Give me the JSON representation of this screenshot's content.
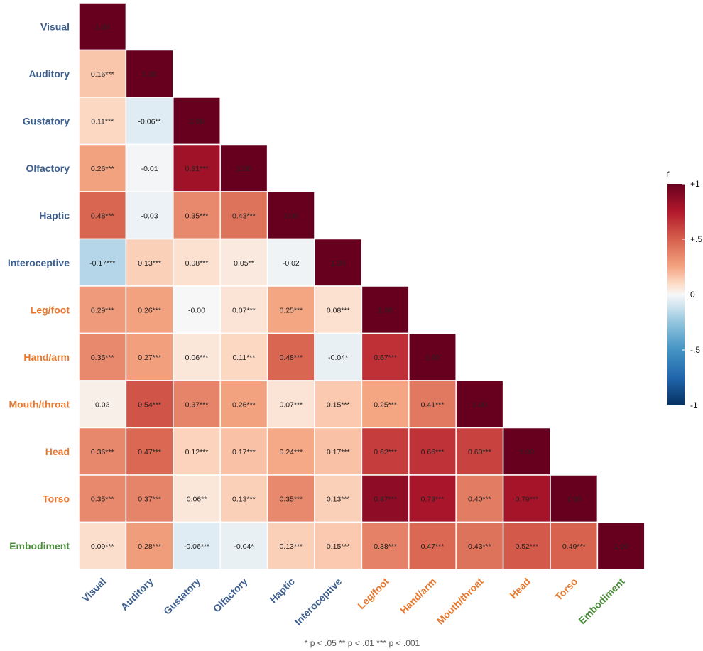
{
  "chart_data": {
    "type": "heatmap",
    "variables": [
      "Visual",
      "Auditory",
      "Gustatory",
      "Olfactory",
      "Haptic",
      "Interoceptive",
      "Leg/foot",
      "Hand/arm",
      "Mouth/throat",
      "Head",
      "Torso",
      "Embodiment"
    ],
    "variable_groups": [
      "perceptual",
      "perceptual",
      "perceptual",
      "perceptual",
      "perceptual",
      "perceptual",
      "action",
      "action",
      "action",
      "action",
      "action",
      "embodiment"
    ],
    "group_colors": {
      "perceptual": "#3d5f8f",
      "action": "#e8782e",
      "embodiment": "#4a8c3a"
    },
    "matrix_lower": [
      [
        1.0
      ],
      [
        0.16,
        1.0
      ],
      [
        0.11,
        -0.06,
        1.0
      ],
      [
        0.26,
        -0.01,
        0.81,
        1.0
      ],
      [
        0.48,
        -0.03,
        0.35,
        0.43,
        1.0
      ],
      [
        -0.17,
        0.13,
        0.08,
        0.05,
        -0.02,
        1.0
      ],
      [
        0.29,
        0.26,
        -0.0,
        0.07,
        0.25,
        0.08,
        1.0
      ],
      [
        0.35,
        0.27,
        0.06,
        0.11,
        0.48,
        -0.04,
        0.67,
        1.0
      ],
      [
        0.03,
        0.54,
        0.37,
        0.26,
        0.07,
        0.15,
        0.25,
        0.41,
        1.0
      ],
      [
        0.36,
        0.47,
        0.12,
        0.17,
        0.24,
        0.17,
        0.62,
        0.66,
        0.6,
        1.0
      ],
      [
        0.35,
        0.37,
        0.06,
        0.13,
        0.35,
        0.13,
        0.87,
        0.78,
        0.4,
        0.79,
        1.0
      ],
      [
        0.09,
        0.28,
        -0.06,
        -0.04,
        0.13,
        0.15,
        0.38,
        0.47,
        0.43,
        0.52,
        0.49,
        1.0
      ]
    ],
    "labels_lower": [
      [
        "1.00"
      ],
      [
        "0.16***",
        "1.00"
      ],
      [
        "0.11***",
        "-0.06**",
        "1.00"
      ],
      [
        "0.26***",
        "-0.01",
        "0.81***",
        "1.00"
      ],
      [
        "0.48***",
        "-0.03",
        "0.35***",
        "0.43***",
        "1.00"
      ],
      [
        "-0.17***",
        "0.13***",
        "0.08***",
        "0.05**",
        "-0.02",
        "1.00"
      ],
      [
        "0.29***",
        "0.26***",
        "-0.00",
        "0.07***",
        "0.25***",
        "0.08***",
        "1.00"
      ],
      [
        "0.35***",
        "0.27***",
        "0.06***",
        "0.11***",
        "0.48***",
        "-0.04*",
        "0.67***",
        "1.00"
      ],
      [
        "0.03",
        "0.54***",
        "0.37***",
        "0.26***",
        "0.07***",
        "0.15***",
        "0.25***",
        "0.41***",
        "1.00"
      ],
      [
        "0.36***",
        "0.47***",
        "0.12***",
        "0.17***",
        "0.24***",
        "0.17***",
        "0.62***",
        "0.66***",
        "0.60***",
        "1.00"
      ],
      [
        "0.35***",
        "0.37***",
        "0.06**",
        "0.13***",
        "0.35***",
        "0.13***",
        "0.87***",
        "0.78***",
        "0.40***",
        "0.79***",
        "1.00"
      ],
      [
        "0.09***",
        "0.28***",
        "-0.06***",
        "-0.04*",
        "0.13***",
        "0.15***",
        "0.38***",
        "0.47***",
        "0.43***",
        "0.52***",
        "0.49***",
        "1.00"
      ]
    ],
    "color_scale": {
      "title": "r",
      "range": [
        -1,
        1
      ],
      "ticks": [
        1,
        0.5,
        0,
        -0.5,
        -1
      ],
      "tick_labels": [
        "+1",
        "+.5",
        "0",
        "-.5",
        "-1"
      ],
      "stops": [
        {
          "value": -1.0,
          "color": "#053061"
        },
        {
          "value": -0.75,
          "color": "#2166ac"
        },
        {
          "value": -0.5,
          "color": "#4393c3"
        },
        {
          "value": -0.25,
          "color": "#92c5de"
        },
        {
          "value": -0.1,
          "color": "#d1e5f0"
        },
        {
          "value": 0.0,
          "color": "#f7f7f7"
        },
        {
          "value": 0.1,
          "color": "#fddbc7"
        },
        {
          "value": 0.25,
          "color": "#f4a582"
        },
        {
          "value": 0.5,
          "color": "#d6604d"
        },
        {
          "value": 0.75,
          "color": "#b2182b"
        },
        {
          "value": 1.0,
          "color": "#67001f"
        }
      ]
    },
    "footnote": "* p < .05   ** p < .01   *** p < .001"
  }
}
